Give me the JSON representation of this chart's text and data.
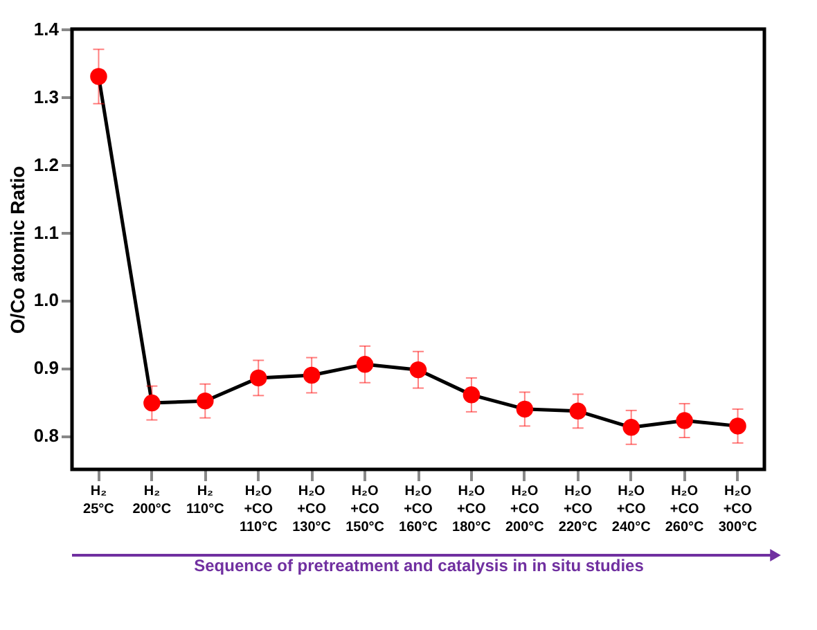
{
  "chart_data": {
    "type": "line",
    "ylabel": "O/Co atomic Ratio",
    "xlabel": "Sequence of pretreatment and catalysis in in situ studies",
    "categories": [
      "H₂\n25°C",
      "H₂\n200°C",
      "H₂\n110°C",
      "H₂O\n+CO\n110°C",
      "H₂O\n+CO\n130°C",
      "H₂O\n+CO\n150°C",
      "H₂O\n+CO\n160°C",
      "H₂O\n+CO\n180°C",
      "H₂O\n+CO\n200°C",
      "H₂O\n+CO\n220°C",
      "H₂O\n+CO\n240°C",
      "H₂O\n+CO\n260°C",
      "H₂O\n+CO\n300°C"
    ],
    "series": [
      {
        "color": "#ff0000",
        "values": [
          1.33,
          0.848,
          0.851,
          0.885,
          0.889,
          0.905,
          0.897,
          0.86,
          0.839,
          0.836,
          0.812,
          0.822,
          0.814
        ],
        "errors": [
          0.04,
          0.025,
          0.025,
          0.026,
          0.026,
          0.027,
          0.027,
          0.025,
          0.025,
          0.025,
          0.025,
          0.025,
          0.025
        ]
      }
    ],
    "ylim": [
      0.75,
      1.4
    ],
    "yticks": [
      0.8,
      0.9,
      {
        "value": 1.0,
        "label": "1.0"
      },
      1.1,
      1.2,
      1.3,
      1.4
    ],
    "marker": "circle",
    "line_style": "solid",
    "grid": false
  }
}
